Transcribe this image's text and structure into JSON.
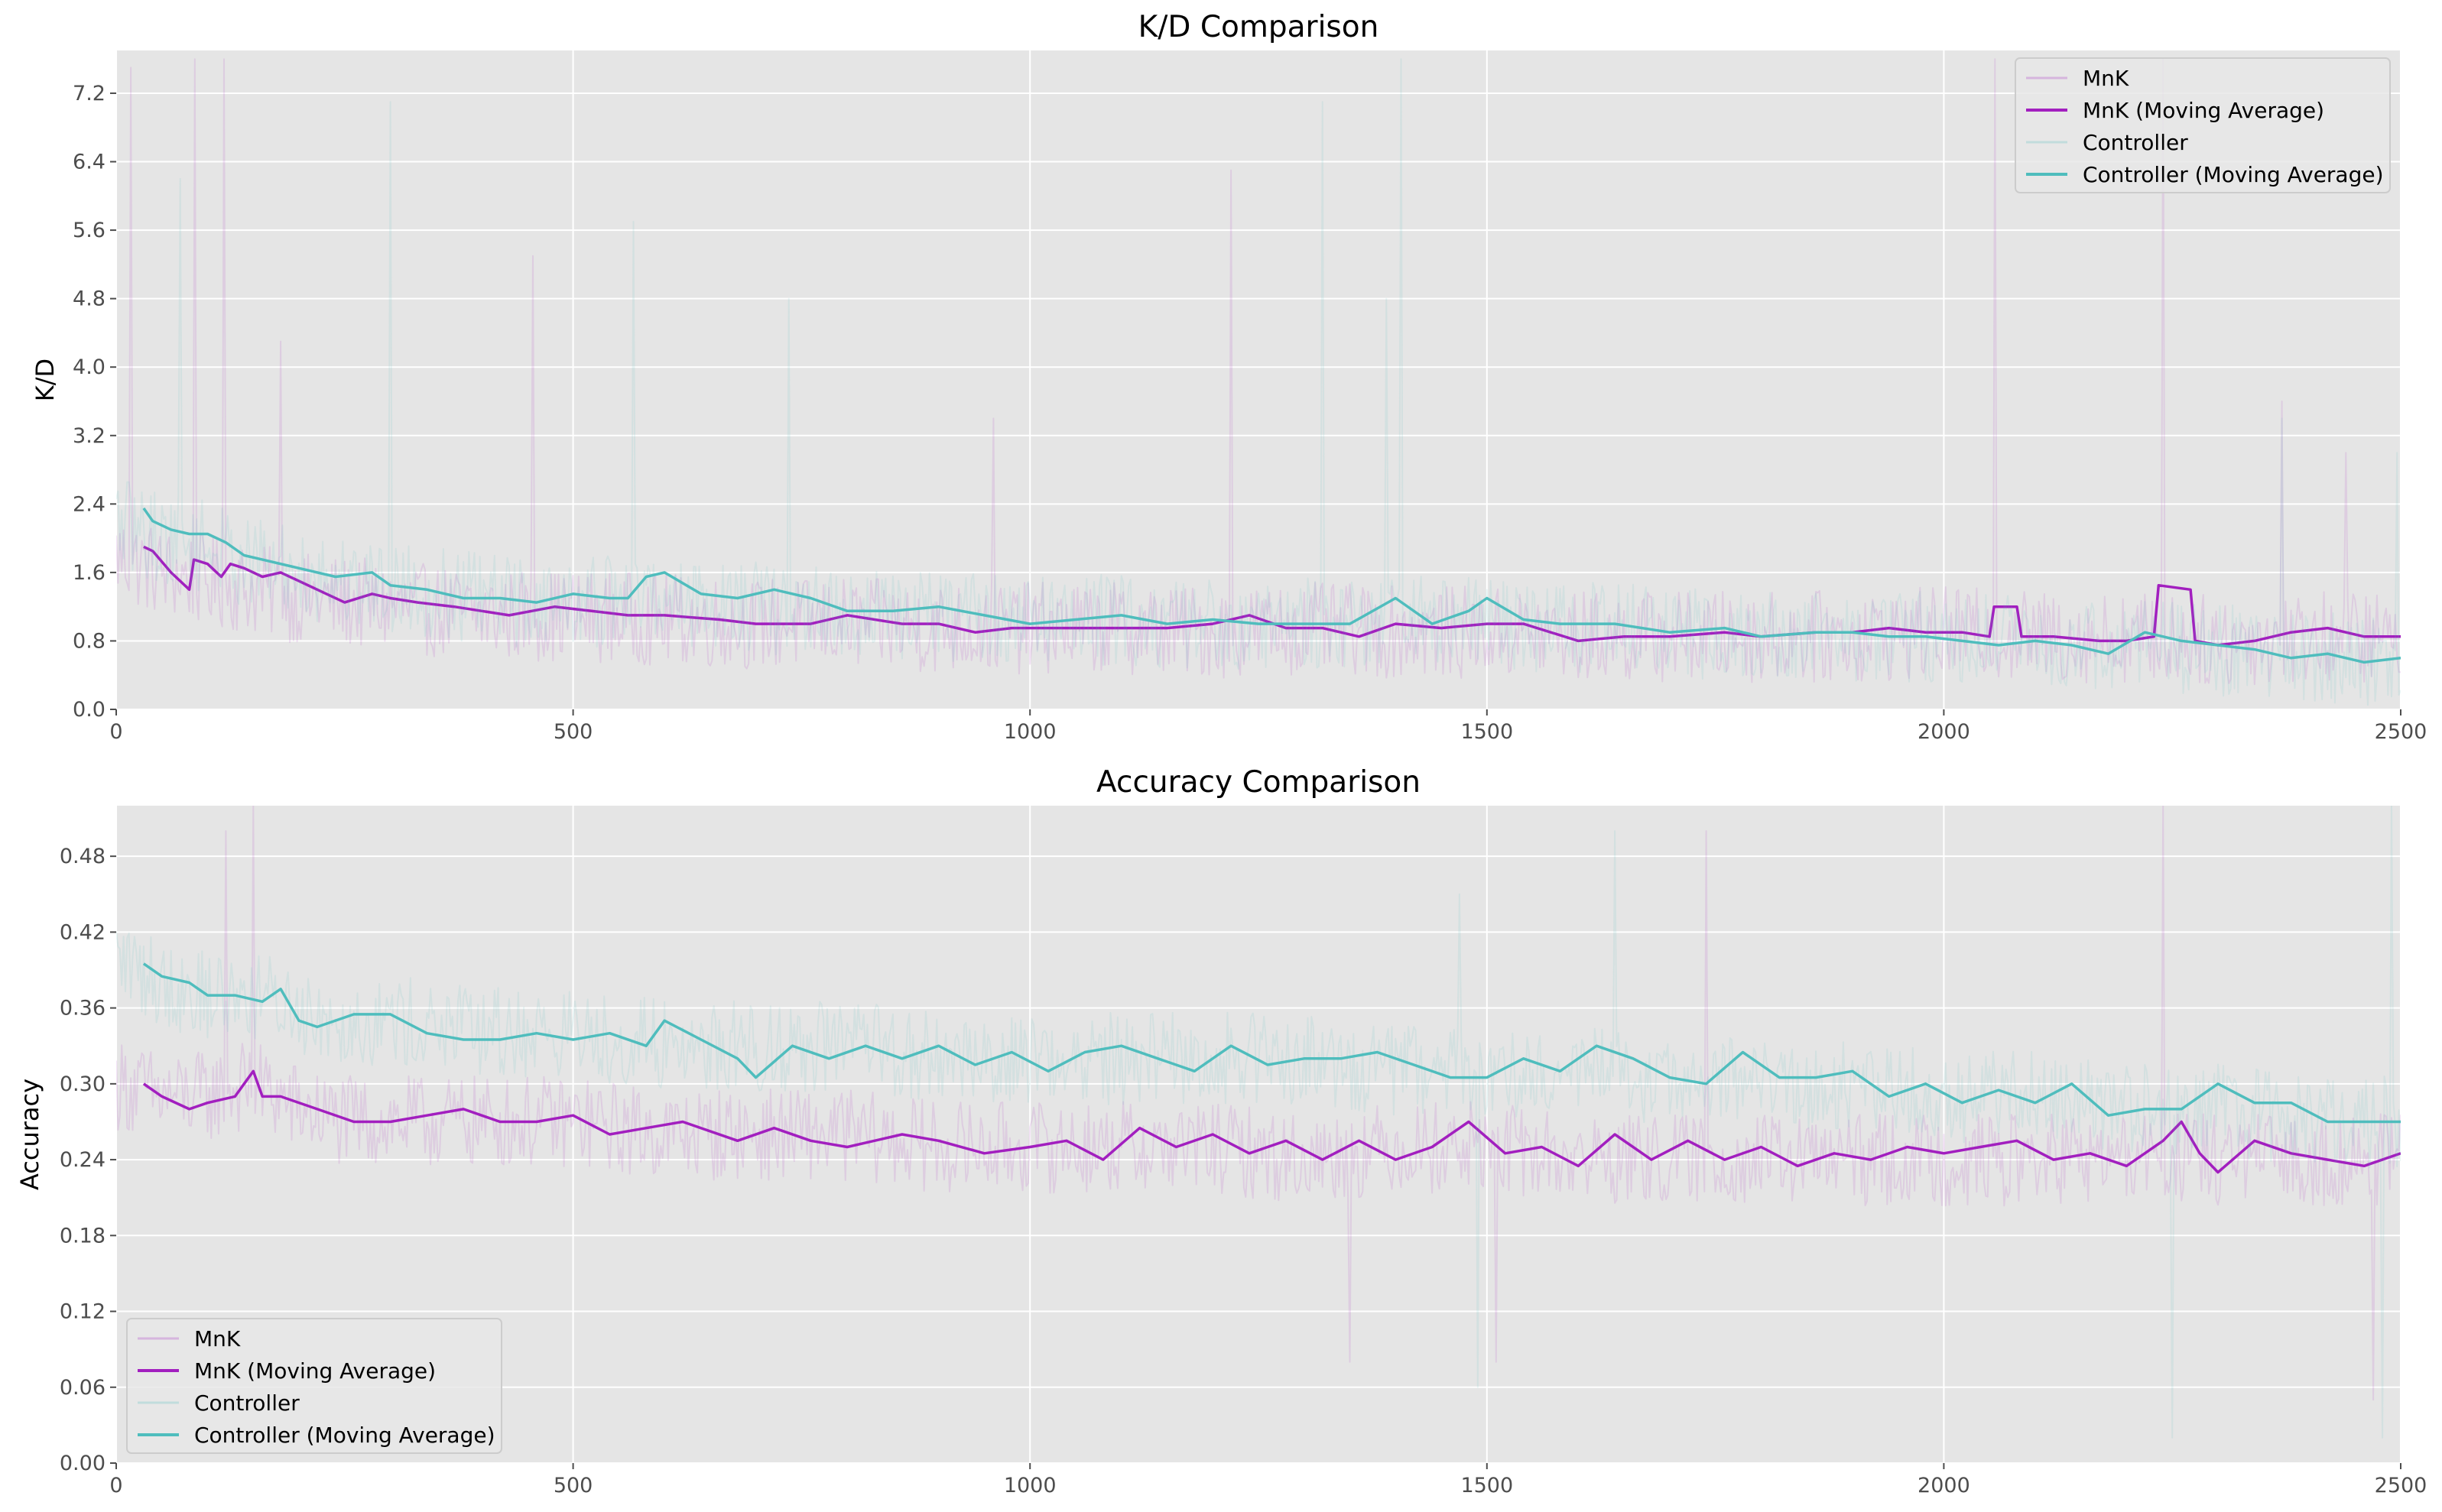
{
  "colors": {
    "plot_background": "#e5e5e5",
    "grid": "#ffffff",
    "mnk": "#a21fbf",
    "controller": "#4fbdbd"
  },
  "chart_data": [
    {
      "type": "line",
      "title": "K/D Comparison",
      "xlabel": "",
      "ylabel": "K/D",
      "xlim": [
        0,
        2500
      ],
      "ylim": [
        0,
        7.7
      ],
      "xticks": [
        0,
        500,
        1000,
        1500,
        2000,
        2500
      ],
      "xtick_labels": [
        "0",
        "500",
        "1000",
        "1500",
        "2000",
        "2500"
      ],
      "yticks": [
        0.0,
        0.8,
        1.6,
        2.4,
        3.2,
        4.0,
        4.8,
        5.6,
        6.4,
        7.2
      ],
      "ytick_labels": [
        "0.0",
        "0.8",
        "1.6",
        "2.4",
        "3.2",
        "4.0",
        "4.8",
        "5.6",
        "6.4",
        "7.2"
      ],
      "grid": true,
      "legend_position": "top-right",
      "series": [
        {
          "name": "MnK",
          "style": "raw",
          "color": "#a21fbf",
          "opacity": 0.12,
          "width": 2,
          "x": [
            0,
            50,
            100,
            150,
            200,
            250,
            300,
            350,
            400,
            450,
            500,
            600,
            700,
            800,
            900,
            1000,
            1100,
            1200,
            1300,
            1400,
            1500,
            1600,
            1700,
            1800,
            1900,
            2000,
            2100,
            2200,
            2300,
            2400,
            2500
          ],
          "y": [
            1.8,
            1.6,
            1.5,
            1.4,
            1.3,
            1.25,
            1.2,
            1.15,
            1.1,
            1.1,
            1.1,
            1.05,
            1.0,
            1.0,
            0.95,
            0.95,
            0.95,
            0.9,
            0.95,
            0.9,
            0.9,
            0.85,
            0.85,
            0.85,
            0.85,
            0.9,
            0.85,
            0.85,
            0.8,
            0.85,
            0.85
          ],
          "spikes": [
            [
              15,
              7.5
            ],
            [
              85,
              7.6
            ],
            [
              118,
              7.6
            ],
            [
              180,
              4.3
            ],
            [
              455,
              5.3
            ],
            [
              1220,
              6.3
            ],
            [
              960,
              3.4
            ],
            [
              2055,
              7.6
            ],
            [
              2240,
              7.6
            ],
            [
              2370,
              3.6
            ],
            [
              2440,
              3.0
            ]
          ]
        },
        {
          "name": "MnK (Moving Average)",
          "style": "ma",
          "color": "#a21fbf",
          "opacity": 1,
          "width": 3.5,
          "x": [
            30,
            40,
            60,
            80,
            85,
            100,
            115,
            125,
            140,
            160,
            180,
            200,
            230,
            250,
            280,
            300,
            330,
            370,
            400,
            430,
            480,
            520,
            560,
            600,
            660,
            700,
            760,
            800,
            860,
            900,
            940,
            980,
            1000,
            1050,
            1100,
            1150,
            1200,
            1240,
            1280,
            1320,
            1360,
            1400,
            1450,
            1500,
            1540,
            1600,
            1650,
            1700,
            1760,
            1800,
            1860,
            1900,
            1940,
            1980,
            2020,
            2050,
            2055,
            2080,
            2085,
            2120,
            2170,
            2200,
            2230,
            2235,
            2270,
            2275,
            2300,
            2340,
            2380,
            2420,
            2460,
            2500
          ],
          "y": [
            1.9,
            1.85,
            1.6,
            1.4,
            1.75,
            1.7,
            1.55,
            1.7,
            1.65,
            1.55,
            1.6,
            1.5,
            1.35,
            1.25,
            1.35,
            1.3,
            1.25,
            1.2,
            1.15,
            1.1,
            1.2,
            1.15,
            1.1,
            1.1,
            1.05,
            1.0,
            1.0,
            1.1,
            1.0,
            1.0,
            0.9,
            0.95,
            0.95,
            0.95,
            0.95,
            0.95,
            1.0,
            1.1,
            0.95,
            0.95,
            0.85,
            1.0,
            0.95,
            1.0,
            1.0,
            0.8,
            0.85,
            0.85,
            0.9,
            0.85,
            0.9,
            0.9,
            0.95,
            0.9,
            0.9,
            0.85,
            1.2,
            1.2,
            0.85,
            0.85,
            0.8,
            0.8,
            0.85,
            1.45,
            1.4,
            0.8,
            0.75,
            0.8,
            0.9,
            0.95,
            0.85,
            0.85
          ]
        },
        {
          "name": "Controller",
          "style": "raw",
          "color": "#4fbdbd",
          "opacity": 0.12,
          "width": 2,
          "x": [
            0,
            50,
            100,
            150,
            200,
            250,
            300,
            350,
            400,
            450,
            500,
            600,
            700,
            800,
            900,
            1000,
            1100,
            1200,
            1300,
            1400,
            1500,
            1600,
            1700,
            1800,
            1900,
            2000,
            2100,
            2200,
            2300,
            2400,
            2500
          ],
          "y": [
            2.2,
            2.0,
            1.9,
            1.7,
            1.6,
            1.5,
            1.45,
            1.35,
            1.3,
            1.25,
            1.25,
            1.3,
            1.2,
            1.1,
            1.1,
            1.05,
            1.05,
            1.0,
            1.0,
            1.05,
            1.0,
            0.95,
            0.9,
            0.85,
            0.85,
            0.85,
            0.8,
            0.75,
            0.7,
            0.6,
            0.55
          ],
          "spikes": [
            [
              70,
              6.2
            ],
            [
              300,
              7.1
            ],
            [
              565,
              5.7
            ],
            [
              735,
              4.8
            ],
            [
              1320,
              7.1
            ],
            [
              1405,
              7.6
            ],
            [
              1390,
              4.8
            ],
            [
              2370,
              3.4
            ],
            [
              2495,
              3.0
            ]
          ]
        },
        {
          "name": "Controller (Moving Average)",
          "style": "ma",
          "color": "#4fbdbd",
          "opacity": 1,
          "width": 3.5,
          "x": [
            30,
            40,
            60,
            80,
            100,
            120,
            140,
            160,
            200,
            240,
            280,
            300,
            340,
            380,
            420,
            460,
            500,
            540,
            560,
            580,
            600,
            640,
            680,
            720,
            760,
            800,
            850,
            900,
            950,
            1000,
            1050,
            1100,
            1150,
            1200,
            1250,
            1300,
            1350,
            1400,
            1440,
            1480,
            1500,
            1540,
            1580,
            1640,
            1700,
            1760,
            1800,
            1860,
            1900,
            1940,
            1980,
            2020,
            2060,
            2100,
            2140,
            2180,
            2220,
            2260,
            2300,
            2340,
            2380,
            2420,
            2460,
            2500
          ],
          "y": [
            2.35,
            2.2,
            2.1,
            2.05,
            2.05,
            1.95,
            1.8,
            1.75,
            1.65,
            1.55,
            1.6,
            1.45,
            1.4,
            1.3,
            1.3,
            1.25,
            1.35,
            1.3,
            1.3,
            1.55,
            1.6,
            1.35,
            1.3,
            1.4,
            1.3,
            1.15,
            1.15,
            1.2,
            1.1,
            1.0,
            1.05,
            1.1,
            1.0,
            1.05,
            1.0,
            1.0,
            1.0,
            1.3,
            1.0,
            1.15,
            1.3,
            1.05,
            1.0,
            1.0,
            0.9,
            0.95,
            0.85,
            0.9,
            0.9,
            0.85,
            0.85,
            0.8,
            0.75,
            0.8,
            0.75,
            0.65,
            0.9,
            0.8,
            0.75,
            0.7,
            0.6,
            0.65,
            0.55,
            0.6
          ]
        }
      ]
    },
    {
      "type": "line",
      "title": "Accuracy Comparison",
      "xlabel": "",
      "ylabel": "Accuracy",
      "xlim": [
        0,
        2500
      ],
      "ylim": [
        0,
        0.52
      ],
      "xticks": [
        0,
        500,
        1000,
        1500,
        2000,
        2500
      ],
      "xtick_labels": [
        "0",
        "500",
        "1000",
        "1500",
        "2000",
        "2500"
      ],
      "yticks": [
        0.0,
        0.06,
        0.12,
        0.18,
        0.24,
        0.3,
        0.36,
        0.42,
        0.48
      ],
      "ytick_labels": [
        "0.00",
        "0.06",
        "0.12",
        "0.18",
        "0.24",
        "0.30",
        "0.36",
        "0.42",
        "0.48"
      ],
      "grid": true,
      "legend_position": "bottom-left",
      "series": [
        {
          "name": "MnK",
          "style": "raw",
          "color": "#a21fbf",
          "opacity": 0.12,
          "width": 2,
          "x": [
            0,
            50,
            100,
            150,
            200,
            250,
            300,
            400,
            500,
            600,
            700,
            800,
            900,
            1000,
            1100,
            1200,
            1300,
            1400,
            1500,
            1600,
            1700,
            1800,
            1900,
            2000,
            2100,
            2200,
            2300,
            2400,
            2500
          ],
          "y": [
            0.3,
            0.29,
            0.29,
            0.3,
            0.28,
            0.27,
            0.27,
            0.27,
            0.27,
            0.26,
            0.26,
            0.26,
            0.25,
            0.25,
            0.25,
            0.25,
            0.24,
            0.25,
            0.25,
            0.24,
            0.24,
            0.24,
            0.24,
            0.24,
            0.24,
            0.24,
            0.24,
            0.24,
            0.24
          ],
          "spikes": [
            [
              120,
              0.5
            ],
            [
              150,
              0.52
            ],
            [
              1350,
              0.08
            ],
            [
              1510,
              0.08
            ],
            [
              1740,
              0.5
            ],
            [
              2240,
              0.52
            ],
            [
              2470,
              0.05
            ]
          ]
        },
        {
          "name": "MnK (Moving Average)",
          "style": "ma",
          "color": "#a21fbf",
          "opacity": 1,
          "width": 3.5,
          "x": [
            30,
            50,
            80,
            100,
            130,
            140,
            150,
            160,
            180,
            220,
            260,
            300,
            340,
            380,
            420,
            460,
            500,
            540,
            580,
            620,
            680,
            720,
            760,
            800,
            860,
            900,
            950,
            1000,
            1040,
            1080,
            1120,
            1160,
            1200,
            1240,
            1280,
            1320,
            1360,
            1400,
            1440,
            1480,
            1520,
            1560,
            1600,
            1640,
            1680,
            1720,
            1760,
            1800,
            1840,
            1880,
            1920,
            1960,
            2000,
            2040,
            2080,
            2120,
            2160,
            2200,
            2240,
            2260,
            2280,
            2300,
            2340,
            2380,
            2420,
            2460,
            2500
          ],
          "y": [
            0.3,
            0.29,
            0.28,
            0.285,
            0.29,
            0.3,
            0.31,
            0.29,
            0.29,
            0.28,
            0.27,
            0.27,
            0.275,
            0.28,
            0.27,
            0.27,
            0.275,
            0.26,
            0.265,
            0.27,
            0.255,
            0.265,
            0.255,
            0.25,
            0.26,
            0.255,
            0.245,
            0.25,
            0.255,
            0.24,
            0.265,
            0.25,
            0.26,
            0.245,
            0.255,
            0.24,
            0.255,
            0.24,
            0.25,
            0.27,
            0.245,
            0.25,
            0.235,
            0.26,
            0.24,
            0.255,
            0.24,
            0.25,
            0.235,
            0.245,
            0.24,
            0.25,
            0.245,
            0.25,
            0.255,
            0.24,
            0.245,
            0.235,
            0.255,
            0.27,
            0.245,
            0.23,
            0.255,
            0.245,
            0.24,
            0.235,
            0.245
          ]
        },
        {
          "name": "Controller",
          "style": "raw",
          "color": "#4fbdbd",
          "opacity": 0.12,
          "width": 2,
          "x": [
            0,
            50,
            100,
            150,
            200,
            250,
            300,
            400,
            500,
            600,
            700,
            800,
            900,
            1000,
            1100,
            1200,
            1300,
            1400,
            1500,
            1600,
            1700,
            1800,
            1900,
            2000,
            2100,
            2200,
            2300,
            2400,
            2500
          ],
          "y": [
            0.4,
            0.38,
            0.37,
            0.37,
            0.36,
            0.35,
            0.35,
            0.34,
            0.34,
            0.33,
            0.33,
            0.33,
            0.32,
            0.32,
            0.32,
            0.32,
            0.32,
            0.31,
            0.31,
            0.31,
            0.3,
            0.3,
            0.3,
            0.29,
            0.29,
            0.28,
            0.28,
            0.27,
            0.27
          ],
          "spikes": [
            [
              1470,
              0.45
            ],
            [
              1640,
              0.5
            ],
            [
              2490,
              0.52
            ],
            [
              1490,
              0.06
            ],
            [
              2250,
              0.02
            ],
            [
              2480,
              0.02
            ]
          ]
        },
        {
          "name": "Controller (Moving Average)",
          "style": "ma",
          "color": "#4fbdbd",
          "opacity": 1,
          "width": 3.5,
          "x": [
            30,
            50,
            80,
            100,
            130,
            160,
            180,
            200,
            220,
            260,
            300,
            340,
            380,
            420,
            460,
            500,
            540,
            580,
            600,
            640,
            680,
            700,
            740,
            780,
            820,
            860,
            900,
            940,
            980,
            1020,
            1060,
            1100,
            1140,
            1180,
            1220,
            1260,
            1300,
            1340,
            1380,
            1420,
            1460,
            1500,
            1540,
            1580,
            1620,
            1660,
            1700,
            1740,
            1780,
            1820,
            1860,
            1900,
            1940,
            1980,
            2020,
            2060,
            2100,
            2140,
            2180,
            2220,
            2260,
            2300,
            2340,
            2380,
            2420,
            2460,
            2500
          ],
          "y": [
            0.395,
            0.385,
            0.38,
            0.37,
            0.37,
            0.365,
            0.375,
            0.35,
            0.345,
            0.355,
            0.355,
            0.34,
            0.335,
            0.335,
            0.34,
            0.335,
            0.34,
            0.33,
            0.35,
            0.335,
            0.32,
            0.305,
            0.33,
            0.32,
            0.33,
            0.32,
            0.33,
            0.315,
            0.325,
            0.31,
            0.325,
            0.33,
            0.32,
            0.31,
            0.33,
            0.315,
            0.32,
            0.32,
            0.325,
            0.315,
            0.305,
            0.305,
            0.32,
            0.31,
            0.33,
            0.32,
            0.305,
            0.3,
            0.325,
            0.305,
            0.305,
            0.31,
            0.29,
            0.3,
            0.285,
            0.295,
            0.285,
            0.3,
            0.275,
            0.28,
            0.28,
            0.3,
            0.285,
            0.285,
            0.27,
            0.27,
            0.27
          ]
        }
      ]
    }
  ]
}
